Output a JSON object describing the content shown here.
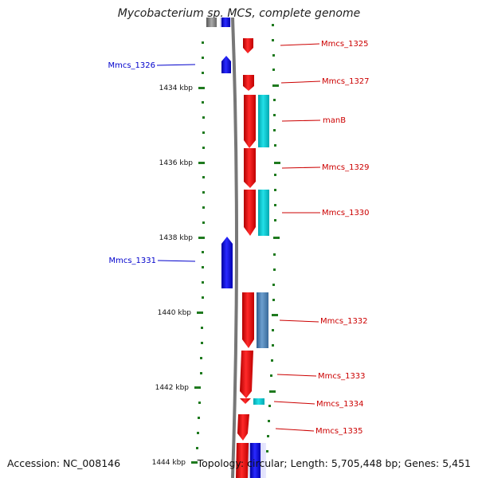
{
  "title": "Mycobacterium sp. MCS, complete genome",
  "accession": "Accession: NC_008146",
  "summary": "Topology: circular; Length: 5,705,448 bp; Genes: 5,451",
  "colors": {
    "forward_cds": "#ff0000",
    "reverse_cds": "#0000ee",
    "forward_feature": "#00c8d2",
    "steel_feature": "#4a7fb5",
    "backbone": "#7a7a7a",
    "tick": "#1f7a1f"
  },
  "ruler": {
    "major_ticks": [
      {
        "label": "1434 kbp"
      },
      {
        "label": "1436 kbp"
      },
      {
        "label": "1438 kbp"
      },
      {
        "label": "1440 kbp"
      },
      {
        "label": "1442 kbp"
      },
      {
        "label": "1444 kbp"
      }
    ]
  },
  "gene_labels": {
    "right": [
      "Mmcs_1325",
      "Mmcs_1327",
      "manB",
      "Mmcs_1329",
      "Mmcs_1330",
      "Mmcs_1332",
      "Mmcs_1333",
      "Mmcs_1334",
      "Mmcs_1335"
    ],
    "left": [
      "Mmcs_1326",
      "Mmcs_1331"
    ]
  }
}
